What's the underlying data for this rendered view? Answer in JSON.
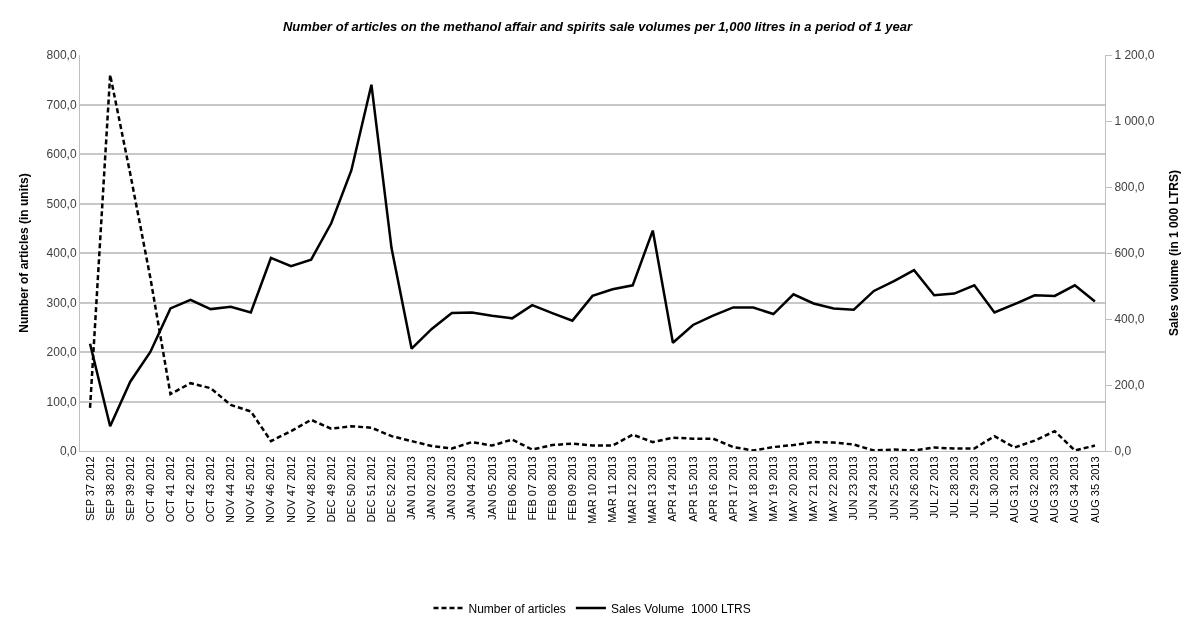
{
  "chart_data": {
    "type": "line",
    "title": "Number of articles on the methanol affair and spirits sale volumes per 1,000 litres in a period of 1 year",
    "ylabel": "Number of articles (in units)",
    "y2label": "Sales volume (in 1 000 LTRS)",
    "categories": [
      "SEP 37 2012",
      "SEP 38 2012",
      "SEP 39 2012",
      "OCT 40 2012",
      "OCT 41 2012",
      "OCT 42 2012",
      "OCT 43 2012",
      "NOV 44 2012",
      "NOV 45 2012",
      "NOV 46 2012",
      "NOV 47 2012",
      "NOV 48 2012",
      "DEC 49 2012",
      "DEC 50 2012",
      "DEC 51 2012",
      "DEC 52 2012",
      "JAN 01 2013",
      "JAN 02 2013",
      "JAN 03 2013",
      "JAN 04 2013",
      "JAN 05 2013",
      "FEB 06 2013",
      "FEB 07 2013",
      "FEB 08 2013",
      "FEB 09 2013",
      "MAR 10 2013",
      "MAR 11 2013",
      "MAR 12 2013",
      "MAR 13 2013",
      "APR 14 2013",
      "APR 15 2013",
      "APR 16 2013",
      "APR 17 2013",
      "MAY 18 2013",
      "MAY 19 2013",
      "MAY 20 2013",
      "MAY 21 2013",
      "MAY 22 2013",
      "JUN 23 2013",
      "JUN 24 2013",
      "JUN 25 2013",
      "JUN 26 2013",
      "JUL 27 2013",
      "JUL 28 2013",
      "JUL 29 2013",
      "JUL 30 2013",
      "AUG 31 2013",
      "AUG 32 2013",
      "AUG 33 2013",
      "AUG 34 2013",
      "AUG 35 2013"
    ],
    "series": [
      {
        "name": "Number of articles",
        "color": "#000000",
        "line_style": "dashed",
        "values": [
          87,
          760,
          560,
          350,
          115,
          137,
          127,
          93,
          80,
          20,
          40,
          63,
          45,
          50,
          47,
          30,
          20,
          10,
          5,
          18,
          11,
          23,
          3,
          12,
          15,
          11,
          11,
          33,
          18,
          27,
          25,
          25,
          8,
          1,
          8,
          12,
          18,
          17,
          13,
          1,
          3,
          1,
          7,
          5,
          5,
          30,
          7,
          21,
          40,
          1,
          11
        ]
      },
      {
        "name": "Sales Volume  1000 LTRS",
        "color": "#000000",
        "line_style": "solid",
        "axis": "y2",
        "values": [
          325,
          75,
          210,
          300,
          432,
          458,
          430,
          437,
          420,
          585,
          560,
          580,
          690,
          850,
          1110,
          615,
          310,
          370,
          418,
          420,
          410,
          402,
          442,
          418,
          395,
          470,
          490,
          502,
          668,
          328,
          382,
          410,
          435,
          435,
          415,
          475,
          447,
          432,
          428,
          485,
          515,
          548,
          472,
          477,
          502,
          420,
          445,
          472,
          470,
          502,
          453
        ]
      }
    ],
    "ylim": [
      0,
      800
    ],
    "yticks": [
      {
        "value": 0,
        "label": "0,0"
      },
      {
        "value": 100,
        "label": "100,0"
      },
      {
        "value": 200,
        "label": "200,0"
      },
      {
        "value": 300,
        "label": "300,0"
      },
      {
        "value": 400,
        "label": "400,0"
      },
      {
        "value": 500,
        "label": "500,0"
      },
      {
        "value": 600,
        "label": "600,0"
      },
      {
        "value": 700,
        "label": "700,0"
      },
      {
        "value": 800,
        "label": "800,0"
      }
    ],
    "y2lim": [
      0,
      1200
    ],
    "y2ticks": [
      {
        "value": 0,
        "label": "0,0"
      },
      {
        "value": 200,
        "label": "200,0"
      },
      {
        "value": 400,
        "label": "400,0"
      },
      {
        "value": 600,
        "label": "600,0"
      },
      {
        "value": 800,
        "label": "800,0"
      },
      {
        "value": 1000,
        "label": "1 000,0"
      },
      {
        "value": 1200,
        "label": "1 200,0"
      }
    ],
    "grid": "y",
    "legend": "bottom",
    "marker": "none"
  }
}
